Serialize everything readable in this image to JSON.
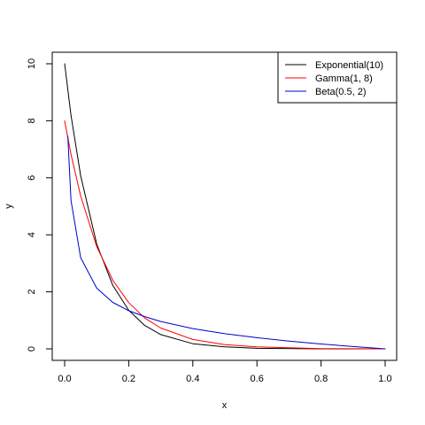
{
  "chart_data": {
    "type": "line",
    "xlabel": "x",
    "ylabel": "y",
    "xlim": [
      0,
      1
    ],
    "ylim": [
      0,
      10
    ],
    "x_ticks": [
      "0.0",
      "0.2",
      "0.4",
      "0.6",
      "0.8",
      "1.0"
    ],
    "y_ticks": [
      "0",
      "2",
      "4",
      "6",
      "8",
      "10"
    ],
    "grid": false,
    "legend_position": "top-right",
    "series": [
      {
        "name": "Exponential(10)",
        "color": "#000000",
        "points": [
          [
            0.0,
            10.0
          ],
          [
            0.02,
            8.19
          ],
          [
            0.05,
            6.07
          ],
          [
            0.1,
            3.68
          ],
          [
            0.15,
            2.23
          ],
          [
            0.2,
            1.35
          ],
          [
            0.25,
            0.82
          ],
          [
            0.3,
            0.5
          ],
          [
            0.4,
            0.18
          ],
          [
            0.5,
            0.07
          ],
          [
            0.6,
            0.02
          ],
          [
            0.8,
            0.0
          ],
          [
            1.0,
            0.0
          ]
        ]
      },
      {
        "name": "Gamma(1, 8)",
        "color": "#ff0000",
        "points": [
          [
            0.0,
            8.0
          ],
          [
            0.02,
            6.82
          ],
          [
            0.05,
            5.36
          ],
          [
            0.1,
            3.59
          ],
          [
            0.15,
            2.41
          ],
          [
            0.2,
            1.62
          ],
          [
            0.25,
            1.08
          ],
          [
            0.3,
            0.73
          ],
          [
            0.4,
            0.33
          ],
          [
            0.5,
            0.15
          ],
          [
            0.6,
            0.07
          ],
          [
            0.8,
            0.01
          ],
          [
            1.0,
            0.0
          ]
        ]
      },
      {
        "name": "Beta(0.5, 2)",
        "color": "#0000cc",
        "points": [
          [
            0.01,
            7.46
          ],
          [
            0.02,
            5.2
          ],
          [
            0.05,
            3.2
          ],
          [
            0.1,
            2.13
          ],
          [
            0.15,
            1.63
          ],
          [
            0.2,
            1.34
          ],
          [
            0.25,
            1.13
          ],
          [
            0.3,
            0.96
          ],
          [
            0.4,
            0.71
          ],
          [
            0.5,
            0.53
          ],
          [
            0.6,
            0.39
          ],
          [
            0.7,
            0.27
          ],
          [
            0.8,
            0.17
          ],
          [
            0.9,
            0.08
          ],
          [
            1.0,
            0.0
          ]
        ]
      }
    ]
  }
}
